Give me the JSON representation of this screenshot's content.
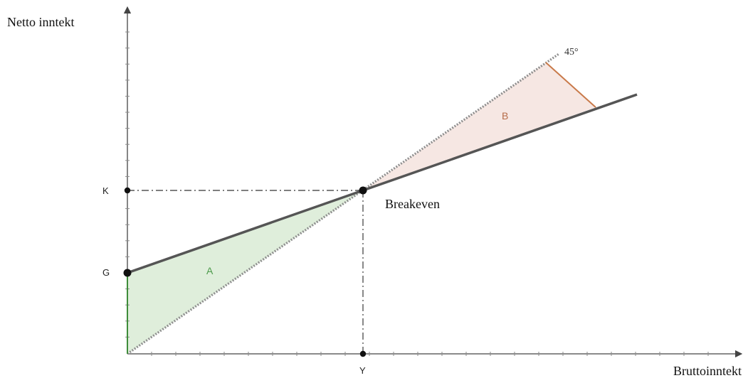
{
  "axes": {
    "y_title": "Netto inntekt",
    "x_title": "Bruttoinntekt"
  },
  "points": {
    "k_label": "K",
    "g_label": "G",
    "y_label": "Y",
    "breakeven_label": "Breakeven"
  },
  "regions": {
    "a_label": "A",
    "b_label": "B",
    "angle_label": "45°"
  },
  "colors": {
    "net_income_line": "#555555",
    "guide_line": "#555555",
    "diagonal_45": "#8f8f8f",
    "region_a_fill": "#dfeedb",
    "region_a_text": "#4c9a4a",
    "region_b_fill": "#f6e7e3",
    "region_b_text": "#b66d4a",
    "orange_segment": "#c97a4a",
    "green_segment": "#3f8c3a",
    "point_fill": "#111111"
  }
}
